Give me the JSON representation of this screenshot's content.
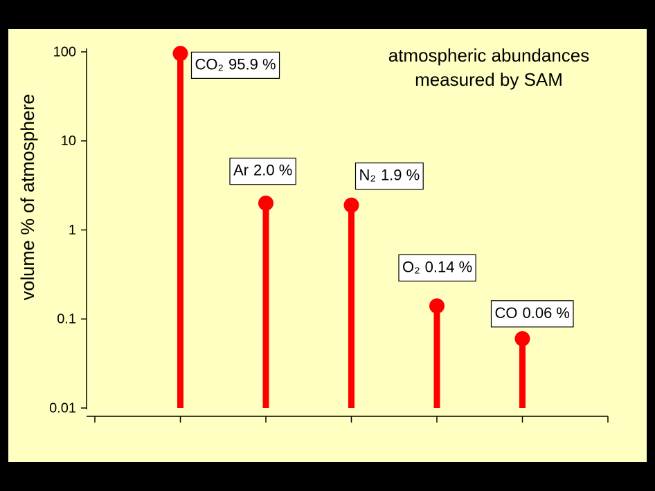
{
  "chart_data": {
    "type": "lollipop",
    "title": [
      "atmospheric abundances",
      "measured by SAM"
    ],
    "y_label": "volume % of atmosphere",
    "categories": [
      "CO₂",
      "Ar",
      "N₂",
      "O₂",
      "CO"
    ],
    "x": [
      1,
      2,
      3,
      4,
      5
    ],
    "values": [
      95.9,
      2.0,
      1.9,
      0.14,
      0.06
    ],
    "value_labels": [
      "95.9 %",
      "2.0 %",
      "1.9 %",
      "0.14 %",
      "0.06 %"
    ],
    "color": "#ff0000",
    "yscale": "log",
    "ylim": [
      0.01,
      100
    ],
    "yticks": [
      100,
      10,
      1,
      0.1,
      0.01
    ],
    "xlim": [
      0,
      6
    ],
    "xticks": [
      0,
      1,
      2,
      3,
      4,
      5,
      6
    ],
    "grid": false
  }
}
